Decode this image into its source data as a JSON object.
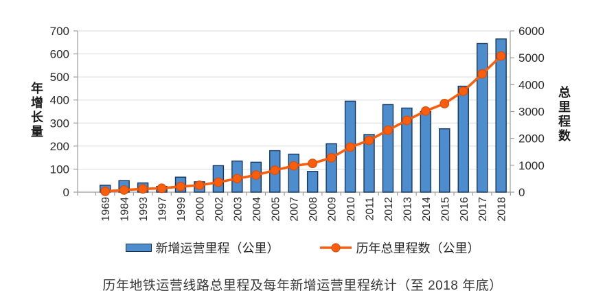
{
  "chart_data": {
    "type": "bar+line",
    "title": "历年地铁运营线路总里程及每年新增运营里程统计（至 2018 年底）",
    "categories": [
      "1969",
      "1984",
      "1993",
      "1997",
      "1999",
      "2000",
      "2002",
      "2003",
      "2004",
      "2005",
      "2007",
      "2008",
      "2009",
      "2010",
      "2011",
      "2012",
      "2013",
      "2014",
      "2015",
      "2016",
      "2017",
      "2018"
    ],
    "series": [
      {
        "name": "新增运营里程（公里）",
        "type": "bar",
        "axis": "left",
        "color": "#4D8DCE",
        "border_color": "#17365D",
        "values": [
          30,
          50,
          40,
          25,
          65,
          45,
          115,
          135,
          130,
          180,
          165,
          90,
          210,
          395,
          250,
          380,
          365,
          350,
          275,
          460,
          645,
          665
        ]
      },
      {
        "name": "历年总里程数（公里）",
        "type": "line",
        "axis": "right",
        "color": "#F95D0E",
        "marker_border_color": "#D94E06",
        "values": [
          30,
          80,
          120,
          145,
          210,
          255,
          370,
          505,
          635,
          815,
          980,
          1070,
          1280,
          1675,
          1925,
          2305,
          2670,
          3020,
          3295,
          3755,
          4400,
          5065
        ]
      }
    ],
    "left_axis": {
      "title": "年增长量",
      "min": 0,
      "max": 700,
      "step": 100,
      "ticks": [
        "0",
        "100",
        "200",
        "300",
        "400",
        "500",
        "600",
        "700"
      ]
    },
    "right_axis": {
      "title": "总里程数",
      "min": 0,
      "max": 6000,
      "step": 1000,
      "ticks": [
        "0",
        "1000",
        "2000",
        "3000",
        "4000",
        "5000",
        "6000"
      ]
    },
    "grid": true,
    "legend_position": "bottom"
  }
}
